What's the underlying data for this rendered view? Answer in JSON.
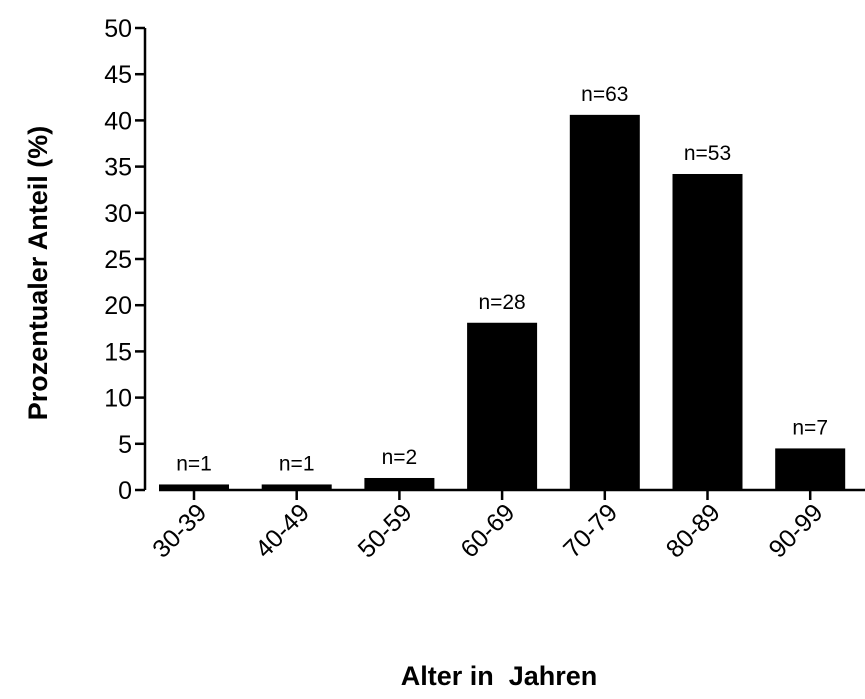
{
  "chart_data": {
    "type": "bar",
    "title": "",
    "xlabel": "Alter in  Jahren",
    "ylabel": "Prozentualer Anteil (%)",
    "ylim": [
      0,
      50
    ],
    "yticks": [
      0,
      5,
      10,
      15,
      20,
      25,
      30,
      35,
      40,
      45,
      50
    ],
    "categories": [
      "30-39",
      "40-49",
      "50-59",
      "60-69",
      "70-79",
      "80-89",
      "90-99"
    ],
    "values": [
      0.6,
      0.6,
      1.3,
      18.1,
      40.6,
      34.2,
      4.5
    ],
    "bar_labels": [
      "n=1",
      "n=1",
      "n=2",
      "n=28",
      "n=63",
      "n=53",
      "n=7"
    ],
    "bar_color": "#000000",
    "grid": false,
    "legend": "none"
  }
}
